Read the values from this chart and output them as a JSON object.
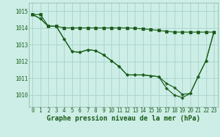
{
  "title": "Graphe pression niveau de la mer (hPa)",
  "hours": [
    0,
    1,
    2,
    3,
    4,
    5,
    6,
    7,
    8,
    9,
    10,
    11,
    12,
    13,
    14,
    15,
    16,
    17,
    18,
    19,
    20,
    21,
    22,
    23
  ],
  "ylim": [
    1009.3,
    1015.5
  ],
  "yticks": [
    1010,
    1011,
    1012,
    1013,
    1014,
    1015
  ],
  "background_color": "#cceee6",
  "grid_color": "#aad4cc",
  "line_color": "#1a5c1a",
  "series": {
    "line1": [
      1014.8,
      1014.8,
      1014.1,
      1014.1,
      1014.0,
      1014.0,
      1014.0,
      1014.0,
      1014.0,
      1014.0,
      1014.0,
      1014.0,
      1014.0,
      1013.98,
      1013.95,
      1013.9,
      1013.85,
      1013.8,
      1013.75,
      1013.75,
      1013.75,
      1013.75,
      1013.75,
      1013.75
    ],
    "line2": [
      1014.8,
      1014.55,
      1014.1,
      1014.1,
      1013.35,
      1012.6,
      1012.55,
      1012.7,
      1012.65,
      1012.4,
      1012.05,
      1011.7,
      1011.2,
      1011.2,
      1011.2,
      1011.15,
      1011.1,
      1010.7,
      1010.45,
      1010.05,
      1010.1,
      1011.1,
      1012.05,
      1013.75
    ],
    "line3": [
      1014.8,
      1014.55,
      1014.1,
      1014.1,
      1013.35,
      1012.6,
      1012.55,
      1012.7,
      1012.65,
      1012.4,
      1012.05,
      1011.7,
      1011.2,
      1011.2,
      1011.2,
      1011.15,
      1011.1,
      1010.4,
      1010.0,
      1009.85,
      1010.1,
      1011.1,
      1012.05,
      1013.75
    ]
  },
  "marker_size": 2.5,
  "linewidth": 0.9,
  "title_fontsize": 7,
  "tick_fontsize": 5.5
}
